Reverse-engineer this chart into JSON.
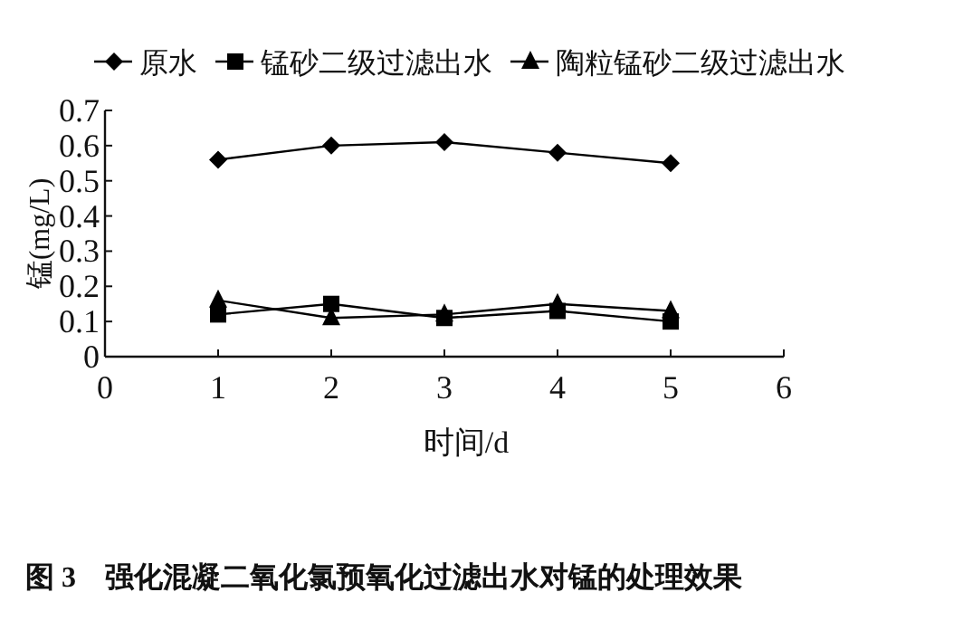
{
  "chart_data": {
    "type": "line",
    "xlabel": "时间/d",
    "ylabel": "锰(mg/L)",
    "annotations": [
      "图 3　强化混凝二氧化氯预氧化过滤出水对锰的处理效果"
    ],
    "x": [
      1,
      2,
      3,
      4,
      5
    ],
    "series": [
      {
        "name": "原水",
        "color": "#000000",
        "marker": "diamond",
        "values": [
          0.56,
          0.6,
          0.61,
          0.58,
          0.55
        ]
      },
      {
        "name": "锰砂二级过滤出水",
        "color": "#000000",
        "marker": "square",
        "values": [
          0.12,
          0.15,
          0.11,
          0.13,
          0.1
        ]
      },
      {
        "name": "陶粒锰砂二级过滤出水",
        "color": "#000000",
        "marker": "triangle",
        "values": [
          0.16,
          0.11,
          0.12,
          0.15,
          0.13
        ]
      }
    ],
    "xlim": [
      0,
      6
    ],
    "xticks": [
      0,
      1,
      2,
      3,
      4,
      5,
      6
    ],
    "ylim": [
      0,
      0.7
    ],
    "yticks": [
      0,
      0.1,
      0.2,
      0.3,
      0.4,
      0.5,
      0.6,
      0.7
    ],
    "legend": "top",
    "grid": false,
    "line_style": "solid"
  }
}
